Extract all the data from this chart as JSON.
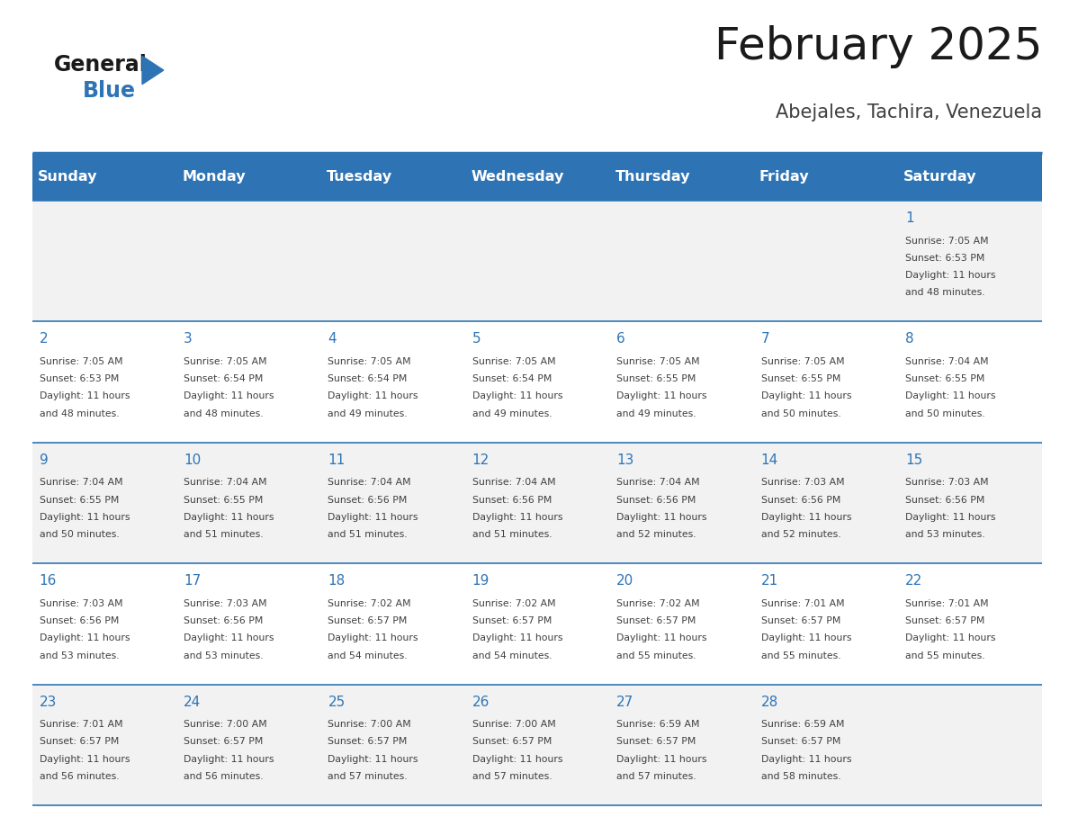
{
  "title": "February 2025",
  "subtitle": "Abejales, Tachira, Venezuela",
  "days_of_week": [
    "Sunday",
    "Monday",
    "Tuesday",
    "Wednesday",
    "Thursday",
    "Friday",
    "Saturday"
  ],
  "header_bg": "#2E74B5",
  "header_text": "#FFFFFF",
  "row_bg_odd": "#F2F2F2",
  "row_bg_even": "#FFFFFF",
  "separator_color": "#2E74B5",
  "day_num_color": "#2E74B5",
  "info_text_color": "#404040",
  "title_color": "#1A1A1A",
  "subtitle_color": "#404040",
  "calendar": [
    [
      {
        "day": null
      },
      {
        "day": null
      },
      {
        "day": null
      },
      {
        "day": null
      },
      {
        "day": null
      },
      {
        "day": null
      },
      {
        "day": 1,
        "sunrise": "7:05 AM",
        "sunset": "6:53 PM",
        "daylight": "11 hours and 48 minutes."
      }
    ],
    [
      {
        "day": 2,
        "sunrise": "7:05 AM",
        "sunset": "6:53 PM",
        "daylight": "11 hours and 48 minutes."
      },
      {
        "day": 3,
        "sunrise": "7:05 AM",
        "sunset": "6:54 PM",
        "daylight": "11 hours and 48 minutes."
      },
      {
        "day": 4,
        "sunrise": "7:05 AM",
        "sunset": "6:54 PM",
        "daylight": "11 hours and 49 minutes."
      },
      {
        "day": 5,
        "sunrise": "7:05 AM",
        "sunset": "6:54 PM",
        "daylight": "11 hours and 49 minutes."
      },
      {
        "day": 6,
        "sunrise": "7:05 AM",
        "sunset": "6:55 PM",
        "daylight": "11 hours and 49 minutes."
      },
      {
        "day": 7,
        "sunrise": "7:05 AM",
        "sunset": "6:55 PM",
        "daylight": "11 hours and 50 minutes."
      },
      {
        "day": 8,
        "sunrise": "7:04 AM",
        "sunset": "6:55 PM",
        "daylight": "11 hours and 50 minutes."
      }
    ],
    [
      {
        "day": 9,
        "sunrise": "7:04 AM",
        "sunset": "6:55 PM",
        "daylight": "11 hours and 50 minutes."
      },
      {
        "day": 10,
        "sunrise": "7:04 AM",
        "sunset": "6:55 PM",
        "daylight": "11 hours and 51 minutes."
      },
      {
        "day": 11,
        "sunrise": "7:04 AM",
        "sunset": "6:56 PM",
        "daylight": "11 hours and 51 minutes."
      },
      {
        "day": 12,
        "sunrise": "7:04 AM",
        "sunset": "6:56 PM",
        "daylight": "11 hours and 51 minutes."
      },
      {
        "day": 13,
        "sunrise": "7:04 AM",
        "sunset": "6:56 PM",
        "daylight": "11 hours and 52 minutes."
      },
      {
        "day": 14,
        "sunrise": "7:03 AM",
        "sunset": "6:56 PM",
        "daylight": "11 hours and 52 minutes."
      },
      {
        "day": 15,
        "sunrise": "7:03 AM",
        "sunset": "6:56 PM",
        "daylight": "11 hours and 53 minutes."
      }
    ],
    [
      {
        "day": 16,
        "sunrise": "7:03 AM",
        "sunset": "6:56 PM",
        "daylight": "11 hours and 53 minutes."
      },
      {
        "day": 17,
        "sunrise": "7:03 AM",
        "sunset": "6:56 PM",
        "daylight": "11 hours and 53 minutes."
      },
      {
        "day": 18,
        "sunrise": "7:02 AM",
        "sunset": "6:57 PM",
        "daylight": "11 hours and 54 minutes."
      },
      {
        "day": 19,
        "sunrise": "7:02 AM",
        "sunset": "6:57 PM",
        "daylight": "11 hours and 54 minutes."
      },
      {
        "day": 20,
        "sunrise": "7:02 AM",
        "sunset": "6:57 PM",
        "daylight": "11 hours and 55 minutes."
      },
      {
        "day": 21,
        "sunrise": "7:01 AM",
        "sunset": "6:57 PM",
        "daylight": "11 hours and 55 minutes."
      },
      {
        "day": 22,
        "sunrise": "7:01 AM",
        "sunset": "6:57 PM",
        "daylight": "11 hours and 55 minutes."
      }
    ],
    [
      {
        "day": 23,
        "sunrise": "7:01 AM",
        "sunset": "6:57 PM",
        "daylight": "11 hours and 56 minutes."
      },
      {
        "day": 24,
        "sunrise": "7:00 AM",
        "sunset": "6:57 PM",
        "daylight": "11 hours and 56 minutes."
      },
      {
        "day": 25,
        "sunrise": "7:00 AM",
        "sunset": "6:57 PM",
        "daylight": "11 hours and 57 minutes."
      },
      {
        "day": 26,
        "sunrise": "7:00 AM",
        "sunset": "6:57 PM",
        "daylight": "11 hours and 57 minutes."
      },
      {
        "day": 27,
        "sunrise": "6:59 AM",
        "sunset": "6:57 PM",
        "daylight": "11 hours and 57 minutes."
      },
      {
        "day": 28,
        "sunrise": "6:59 AM",
        "sunset": "6:57 PM",
        "daylight": "11 hours and 58 minutes."
      },
      {
        "day": null
      }
    ]
  ]
}
